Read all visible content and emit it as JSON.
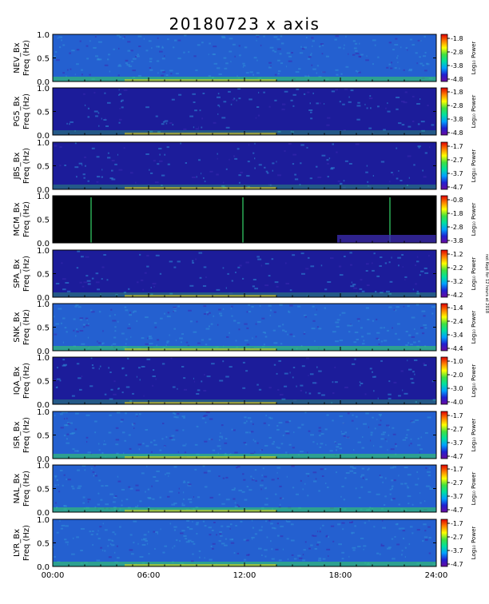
{
  "title": "20180723 x axis",
  "side_note": "not Kept for 12 hours at 2018",
  "x_axis": {
    "tick_labels": [
      "00:00",
      "06:00",
      "12:00",
      "18:00",
      "24:00"
    ],
    "tick_values": [
      0,
      6,
      12,
      18,
      24
    ],
    "range": [
      0,
      24
    ]
  },
  "colorbar_label": "Log₁₀ Power",
  "colors": {
    "panel_bg_low": "#1a1aa8",
    "panel_mid": "#2f8fd8",
    "panel_high": "#33cc66",
    "panel_hot": "#ffdd00",
    "colorbar": [
      "#6a0aa0",
      "#2020d0",
      "#00a0ff",
      "#00e0a0",
      "#40e040",
      "#ffff00",
      "#ff8000",
      "#e00000"
    ]
  },
  "chart_data": {
    "type": "heatmap",
    "xlabel": "",
    "x_range": [
      0,
      24
    ],
    "y_range": [
      0,
      1.0
    ],
    "y_ticks": [
      "0.0",
      "0.5",
      "1.0"
    ],
    "panels": [
      {
        "name": "NEV",
        "ylabel_top": "NEV_Bx",
        "ylabel_bot": "Freq (Hz)",
        "cbar_ticks": [
          "-1.8",
          "-2.8",
          "-3.8",
          "-4.8"
        ],
        "style": "noisy"
      },
      {
        "name": "PG5",
        "ylabel_top": "PG5_Bx",
        "ylabel_bot": "Freq (Hz)",
        "cbar_ticks": [
          "-1.8",
          "-2.8",
          "-3.8",
          "-4.8"
        ],
        "style": "dark"
      },
      {
        "name": "JBS",
        "ylabel_top": "JBS_Bx",
        "ylabel_bot": "Freq (Hz)",
        "cbar_ticks": [
          "-1.7",
          "-2.7",
          "-3.7",
          "-4.7"
        ],
        "style": "dark"
      },
      {
        "name": "MCM",
        "ylabel_top": "MCM_Bx",
        "ylabel_bot": "Freq (Hz)",
        "cbar_ticks": [
          "-0.8",
          "-1.8",
          "-2.8",
          "-3.8"
        ],
        "style": "black"
      },
      {
        "name": "SPA",
        "ylabel_top": "SPA_Bx",
        "ylabel_bot": "Freq (Hz)",
        "cbar_ticks": [
          "-1.2",
          "-2.2",
          "-3.2",
          "-4.2"
        ],
        "style": "dark"
      },
      {
        "name": "SNK",
        "ylabel_top": "SNK_Bx",
        "ylabel_bot": "Freq (Hz)",
        "cbar_ticks": [
          "-1.4",
          "-2.4",
          "-3.4",
          "-4.4"
        ],
        "style": "bright"
      },
      {
        "name": "IQA",
        "ylabel_top": "IQA_Bx",
        "ylabel_bot": "Freq (Hz)",
        "cbar_ticks": [
          "-1.0",
          "-2.0",
          "-3.0",
          "-4.0"
        ],
        "style": "dark"
      },
      {
        "name": "ISR",
        "ylabel_top": "ISR_Bx",
        "ylabel_bot": "Freq (Hz)",
        "cbar_ticks": [
          "-1.7",
          "-2.7",
          "-3.7",
          "-4.7"
        ],
        "style": "bright"
      },
      {
        "name": "NAL",
        "ylabel_top": "NAL_Bx",
        "ylabel_bot": "Freq (Hz)",
        "cbar_ticks": [
          "-1.7",
          "-2.7",
          "-3.7",
          "-4.7"
        ],
        "style": "bright"
      },
      {
        "name": "LYR",
        "ylabel_top": "LYR_Bx",
        "ylabel_bot": "Freq (Hz)",
        "cbar_ticks": [
          "-1.7",
          "-2.7",
          "-3.7",
          "-4.7"
        ],
        "style": "bright"
      }
    ]
  }
}
